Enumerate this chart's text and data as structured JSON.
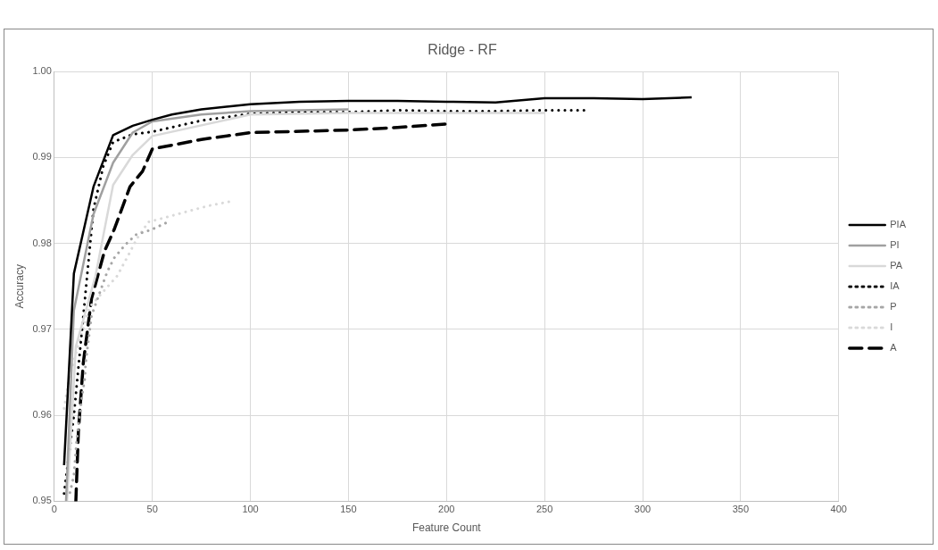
{
  "chart_data": {
    "type": "line",
    "title": "Ridge - RF",
    "xlabel": "Feature Count",
    "ylabel": "Accuracy",
    "xlim": [
      0,
      400
    ],
    "xticks": [
      0,
      50,
      100,
      150,
      200,
      250,
      300,
      350,
      400
    ],
    "ylim": [
      0.95,
      1.0
    ],
    "yticks": [
      0.95,
      0.96,
      0.97,
      0.98,
      0.99,
      {
        "value": 1.0,
        "label": "1.00"
      }
    ],
    "grid": true,
    "legend": "right",
    "marker": "none",
    "series": [
      {
        "name": "PIA",
        "color": "#000000",
        "line_style": "solid",
        "x": [
          5,
          10,
          20,
          30,
          40,
          50,
          60,
          75,
          100,
          125,
          150,
          175,
          200,
          225,
          250,
          275,
          300,
          325
        ],
        "values": [
          0.9542,
          0.9765,
          0.9866,
          0.9926,
          0.9937,
          0.9944,
          0.995,
          0.9956,
          0.9962,
          0.9965,
          0.9966,
          0.9966,
          0.9965,
          0.9964,
          0.9969,
          0.9969,
          0.9968,
          0.997
        ]
      },
      {
        "name": "PI",
        "color": "#a0a0a0",
        "line_style": "solid",
        "x": [
          6,
          10,
          20,
          30,
          40,
          50,
          75,
          100,
          150
        ],
        "values": [
          0.95,
          0.9722,
          0.9834,
          0.9894,
          0.9929,
          0.9942,
          0.995,
          0.9954,
          0.9956
        ]
      },
      {
        "name": "PA",
        "color": "#d9d9d9",
        "line_style": "solid",
        "x": [
          6.5,
          11,
          21,
          30,
          40,
          50,
          100,
          150,
          200,
          250
        ],
        "values": [
          0.95,
          0.968,
          0.9762,
          0.9868,
          0.9903,
          0.9925,
          0.995,
          0.9952,
          0.9952,
          0.9952
        ]
      },
      {
        "name": "IA",
        "color": "#000000",
        "line_style": "dotted",
        "x": [
          5,
          10,
          15,
          20,
          25,
          30,
          40,
          50,
          75,
          100,
          125,
          150,
          175,
          200,
          225,
          250,
          272
        ],
        "values": [
          0.9509,
          0.96,
          0.972,
          0.984,
          0.989,
          0.9918,
          0.9927,
          0.993,
          0.9943,
          0.9951,
          0.9953,
          0.9953,
          0.9955,
          0.9954,
          0.9954,
          0.9955,
          0.9955
        ]
      },
      {
        "name": "P",
        "color": "#a6a6a6",
        "line_style": "dotted",
        "x": [
          8,
          10,
          11.4,
          14,
          15.6,
          16,
          19,
          27,
          30.5,
          36,
          41.5,
          49.5,
          57
        ],
        "values": [
          0.951,
          0.953,
          0.957,
          0.962,
          0.9643,
          0.9661,
          0.9716,
          0.9767,
          0.9783,
          0.9798,
          0.981,
          0.9816,
          0.9824
        ]
      },
      {
        "name": "I",
        "color": "#d9d9d9",
        "line_style": "dotted",
        "x": [
          5,
          7.5,
          12,
          18,
          25,
          32,
          37,
          42,
          48,
          58,
          69,
          79,
          90
        ],
        "values": [
          0.9608,
          0.9642,
          0.968,
          0.9726,
          0.9744,
          0.9762,
          0.9783,
          0.9805,
          0.9825,
          0.9831,
          0.9838,
          0.9844,
          0.9849
        ]
      },
      {
        "name": "A",
        "color": "#000000",
        "line_style": "dashed",
        "x": [
          11,
          12.3,
          14.8,
          19,
          25.6,
          30.5,
          38.6,
          45,
          50,
          75,
          100,
          150,
          175,
          200
        ],
        "values": [
          0.95,
          0.9581,
          0.9661,
          0.9736,
          0.9791,
          0.9816,
          0.9866,
          0.9884,
          0.991,
          0.9921,
          0.9929,
          0.9932,
          0.9935,
          0.9939
        ]
      }
    ]
  }
}
